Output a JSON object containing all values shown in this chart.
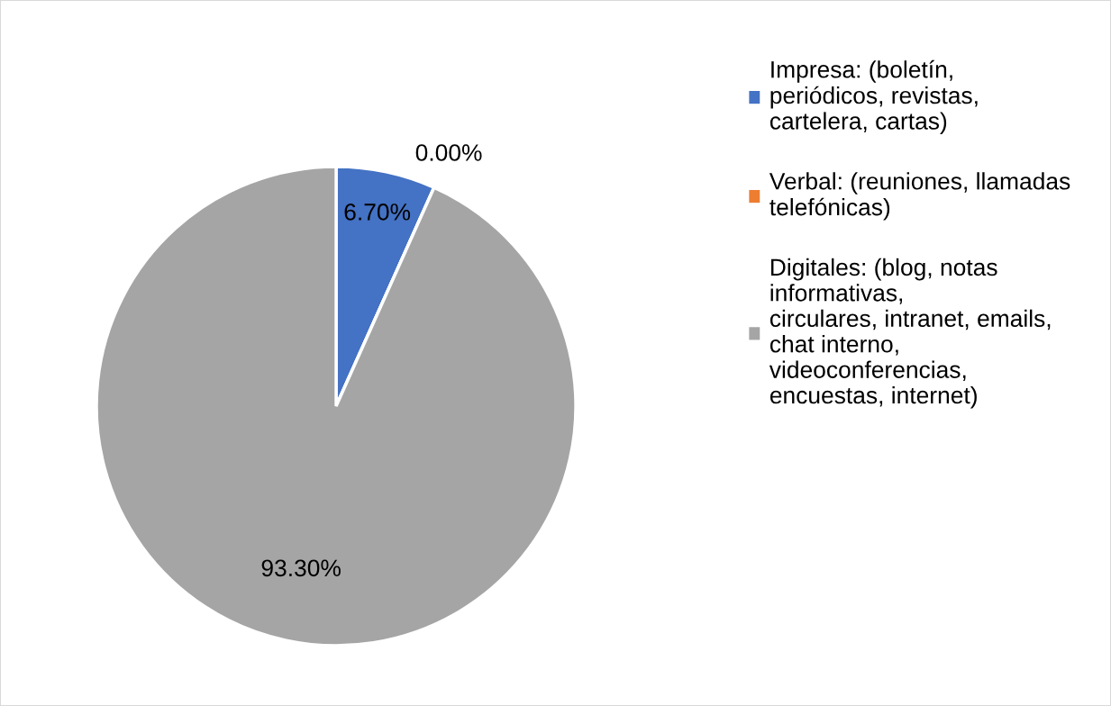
{
  "chart_data": {
    "type": "pie",
    "categories": [
      "Impresa: (boletín,\nperiódicos, revistas,\ncartelera, cartas)",
      "Verbal: (reuniones, llamadas\ntelefónicas)",
      "Digitales: (blog, notas\ninformativas,\ncirculares, intranet, emails,\nchat interno,\nvideoconferencias,\nencuestas, internet)"
    ],
    "values": [
      6.7,
      0,
      93.3
    ],
    "colors": [
      "#4472c4",
      "#ed7d31",
      "#a5a5a5"
    ],
    "value_labels": [
      "6.70%",
      "0.00%",
      "93.30%"
    ],
    "legend": "right"
  }
}
